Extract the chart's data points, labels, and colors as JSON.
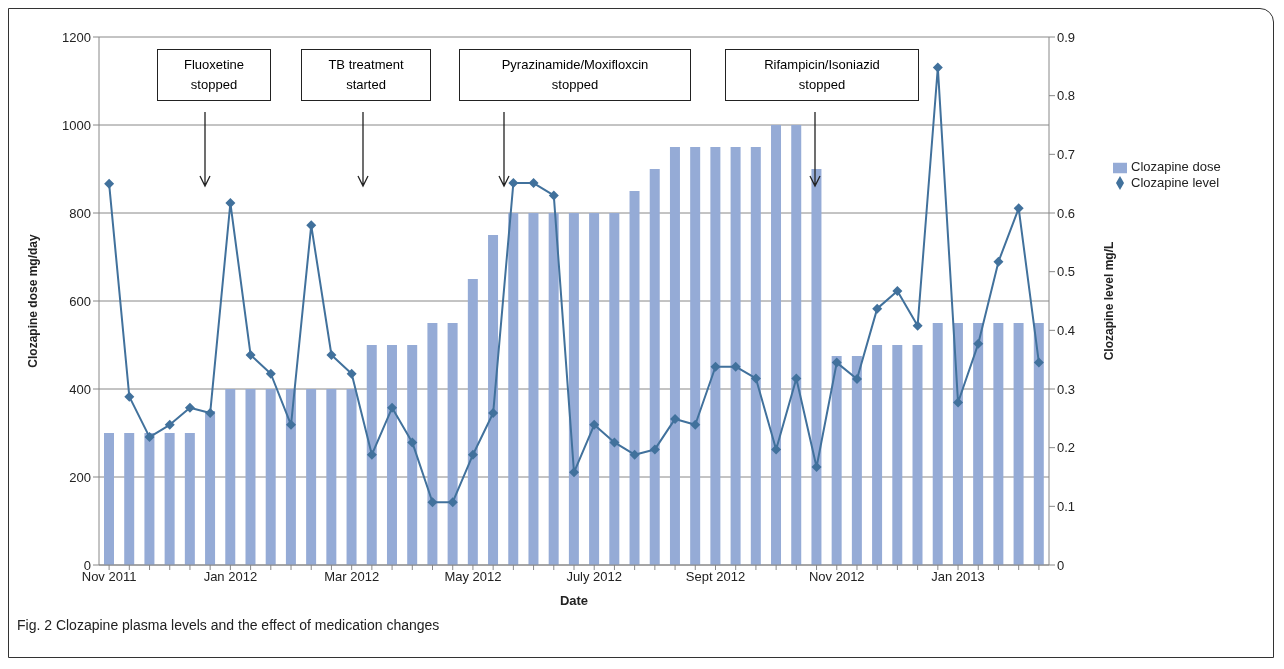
{
  "chart_data": {
    "type": "bar",
    "categories": [
      "Nov 2011",
      null,
      null,
      null,
      null,
      null,
      "Jan 2012",
      null,
      null,
      null,
      null,
      null,
      "Mar 2012",
      null,
      null,
      null,
      null,
      null,
      "May 2012",
      null,
      null,
      null,
      null,
      null,
      "July 2012",
      null,
      null,
      null,
      null,
      null,
      "Sept 2012",
      null,
      null,
      null,
      null,
      null,
      "Nov 2012",
      null,
      null,
      null,
      null,
      null,
      "Jan 2013",
      null,
      null,
      null,
      null
    ],
    "series": [
      {
        "name": "Clozapine dose",
        "color": "#95abd6",
        "values": [
          300,
          300,
          300,
          300,
          300,
          350,
          400,
          400,
          400,
          400,
          400,
          400,
          400,
          500,
          500,
          500,
          550,
          550,
          650,
          750,
          800,
          800,
          800,
          800,
          800,
          800,
          850,
          900,
          950,
          950,
          950,
          950,
          950,
          1000,
          1000,
          900,
          475,
          475,
          500,
          500,
          500,
          550,
          550,
          550,
          550,
          550,
          550
        ]
      },
      {
        "name": "Clozapine level",
        "type": "line",
        "axis": "y2",
        "color": "#41719c",
        "marker": "diamond",
        "values": [
          0.65,
          0.287,
          0.218,
          0.239,
          0.268,
          0.259,
          0.617,
          0.358,
          0.326,
          0.239,
          0.579,
          0.358,
          0.326,
          0.188,
          0.268,
          0.209,
          0.107,
          0.107,
          0.188,
          0.259,
          0.651,
          0.651,
          0.63,
          0.158,
          0.239,
          0.209,
          0.188,
          0.197,
          0.249,
          0.239,
          0.338,
          0.338,
          0.318,
          0.197,
          0.318,
          0.167,
          0.345,
          0.317,
          0.437,
          0.467,
          0.408,
          0.848,
          0.277,
          0.377,
          0.517,
          0.608,
          0.345
        ]
      }
    ],
    "xlabel": "Date",
    "ylabel": "Clozapine dose mg/day",
    "y2label": "Clozapine level  mg/L",
    "ylim": [
      0,
      1200
    ],
    "yticks": [
      0,
      200,
      400,
      600,
      800,
      1000,
      1200
    ],
    "y2lim": [
      0,
      0.9
    ],
    "y2ticks": [
      0,
      0.1,
      0.2,
      0.3,
      0.4,
      0.5,
      0.6,
      0.7,
      0.8,
      0.9
    ],
    "grid": "y",
    "legend": "right",
    "annotations": [
      "Fluoxetine stopped",
      "TB treatment started",
      "Pyrazinamide/Moxifloxcin stopped",
      "Rifampicin/Isoniazid stopped",
      "Fig. 2 Clozapine plasma levels and the effect of medication changes"
    ]
  }
}
